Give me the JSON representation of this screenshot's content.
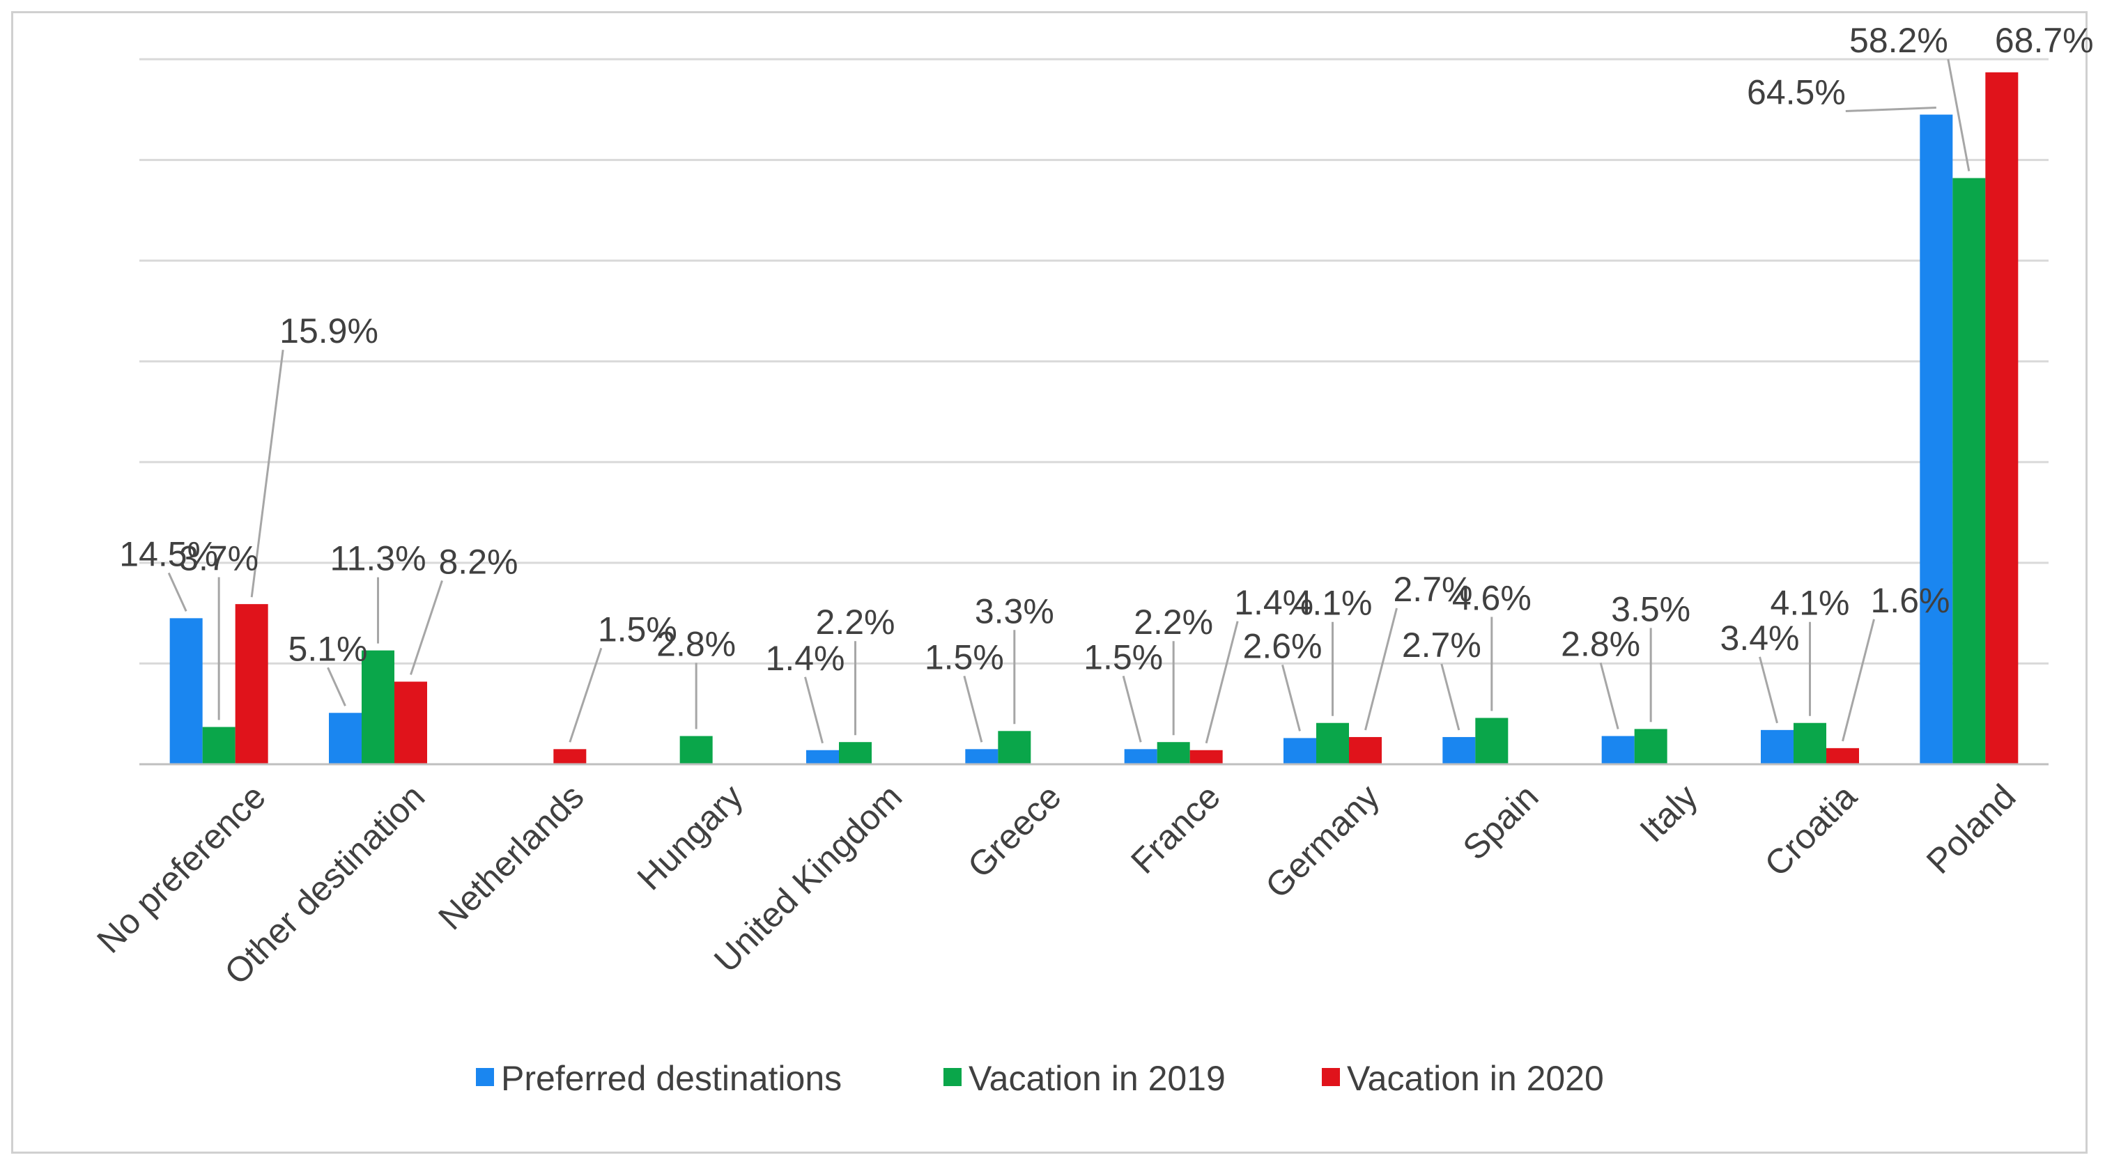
{
  "chart_data": {
    "type": "bar",
    "title": "",
    "xlabel": "",
    "ylabel": "",
    "ylim": [
      0,
      70
    ],
    "grid": true,
    "legend_position": "bottom",
    "categories": [
      "No preference",
      "Other destination",
      "Netherlands",
      "Hungary",
      "United Kingdom",
      "Greece",
      "France",
      "Germany",
      "Spain",
      "Italy",
      "Croatia",
      "Poland"
    ],
    "series": [
      {
        "name": "Preferred destinations",
        "color": "#1a86f0",
        "values": [
          14.5,
          5.1,
          null,
          null,
          1.4,
          1.5,
          1.5,
          2.6,
          2.7,
          2.8,
          3.4,
          64.5
        ],
        "labels": [
          "14.5%",
          "5.1%",
          "",
          "",
          "1.4%",
          "1.5%",
          "1.5%",
          "2.6%",
          "2.7%",
          "2.8%",
          "3.4%",
          "64.5%"
        ]
      },
      {
        "name": "Vacation in 2019",
        "color": "#0aa64a",
        "values": [
          3.7,
          11.3,
          null,
          2.8,
          2.2,
          3.3,
          2.2,
          4.1,
          4.6,
          3.5,
          4.1,
          58.2
        ],
        "labels": [
          "3.7%",
          "11.3%",
          "",
          "2.8%",
          "2.2%",
          "3.3%",
          "2.2%",
          "4.1%",
          "4.6%",
          "3.5%",
          "4.1%",
          "58.2%"
        ]
      },
      {
        "name": "Vacation in 2020",
        "color": "#e0131b",
        "values": [
          15.9,
          8.2,
          1.5,
          null,
          null,
          null,
          1.4,
          2.7,
          null,
          null,
          1.6,
          68.7
        ],
        "labels": [
          "15.9%",
          "8.2%",
          "1.5%",
          "",
          "",
          "",
          "1.4%",
          "2.7%",
          "",
          "",
          "1.6%",
          "68.7%"
        ]
      }
    ]
  }
}
